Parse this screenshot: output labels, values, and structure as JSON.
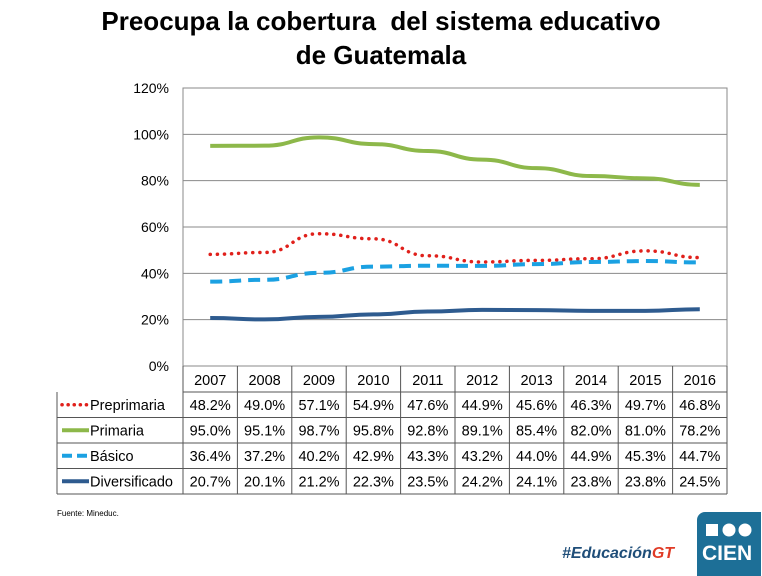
{
  "title_line1": "Preocupa la cobertura  del sistema educativo",
  "title_line2": "de Guatemala",
  "source": "Fuente: Mineduc.",
  "hashtag_main": "#Educación",
  "hashtag_accent": "GT",
  "logo_text": "CIEN",
  "colors": {
    "preprimaria": "#e0201b",
    "primaria": "#8db84a",
    "basico": "#1ba1e2",
    "diversificado": "#2e5b8f",
    "hashtag": "#1f4e79",
    "logo_bg": "#1d6f97"
  },
  "chart_data": {
    "type": "line",
    "categories": [
      "2007",
      "2008",
      "2009",
      "2010",
      "2011",
      "2012",
      "2013",
      "2014",
      "2015",
      "2016"
    ],
    "ylim": [
      0,
      120
    ],
    "yticks": [
      "0%",
      "20%",
      "40%",
      "60%",
      "80%",
      "100%",
      "120%"
    ],
    "grid": true,
    "series": [
      {
        "name": "Preprimaria",
        "style": "dotted",
        "color": "#e0201b",
        "values": [
          48.2,
          49.0,
          57.1,
          54.9,
          47.6,
          44.9,
          45.6,
          46.3,
          49.7,
          46.8
        ],
        "labels": [
          "48.2%",
          "49.0%",
          "57.1%",
          "54.9%",
          "47.6%",
          "44.9%",
          "45.6%",
          "46.3%",
          "49.7%",
          "46.8%"
        ]
      },
      {
        "name": "Primaria",
        "style": "solid",
        "color": "#8db84a",
        "values": [
          95.0,
          95.1,
          98.7,
          95.8,
          92.8,
          89.1,
          85.4,
          82.0,
          81.0,
          78.2
        ],
        "labels": [
          "95.0%",
          "95.1%",
          "98.7%",
          "95.8%",
          "92.8%",
          "89.1%",
          "85.4%",
          "82.0%",
          "81.0%",
          "78.2%"
        ]
      },
      {
        "name": "Básico",
        "style": "dashed",
        "color": "#1ba1e2",
        "values": [
          36.4,
          37.2,
          40.2,
          42.9,
          43.3,
          43.2,
          44.0,
          44.9,
          45.3,
          44.7
        ],
        "labels": [
          "36.4%",
          "37.2%",
          "40.2%",
          "42.9%",
          "43.3%",
          "43.2%",
          "44.0%",
          "44.9%",
          "45.3%",
          "44.7%"
        ]
      },
      {
        "name": "Diversificado",
        "style": "solid",
        "color": "#2e5b8f",
        "values": [
          20.7,
          20.1,
          21.2,
          22.3,
          23.5,
          24.2,
          24.1,
          23.8,
          23.8,
          24.5
        ],
        "labels": [
          "20.7%",
          "20.1%",
          "21.2%",
          "22.3%",
          "23.5%",
          "24.2%",
          "24.1%",
          "23.8%",
          "23.8%",
          "24.5%"
        ]
      }
    ]
  }
}
